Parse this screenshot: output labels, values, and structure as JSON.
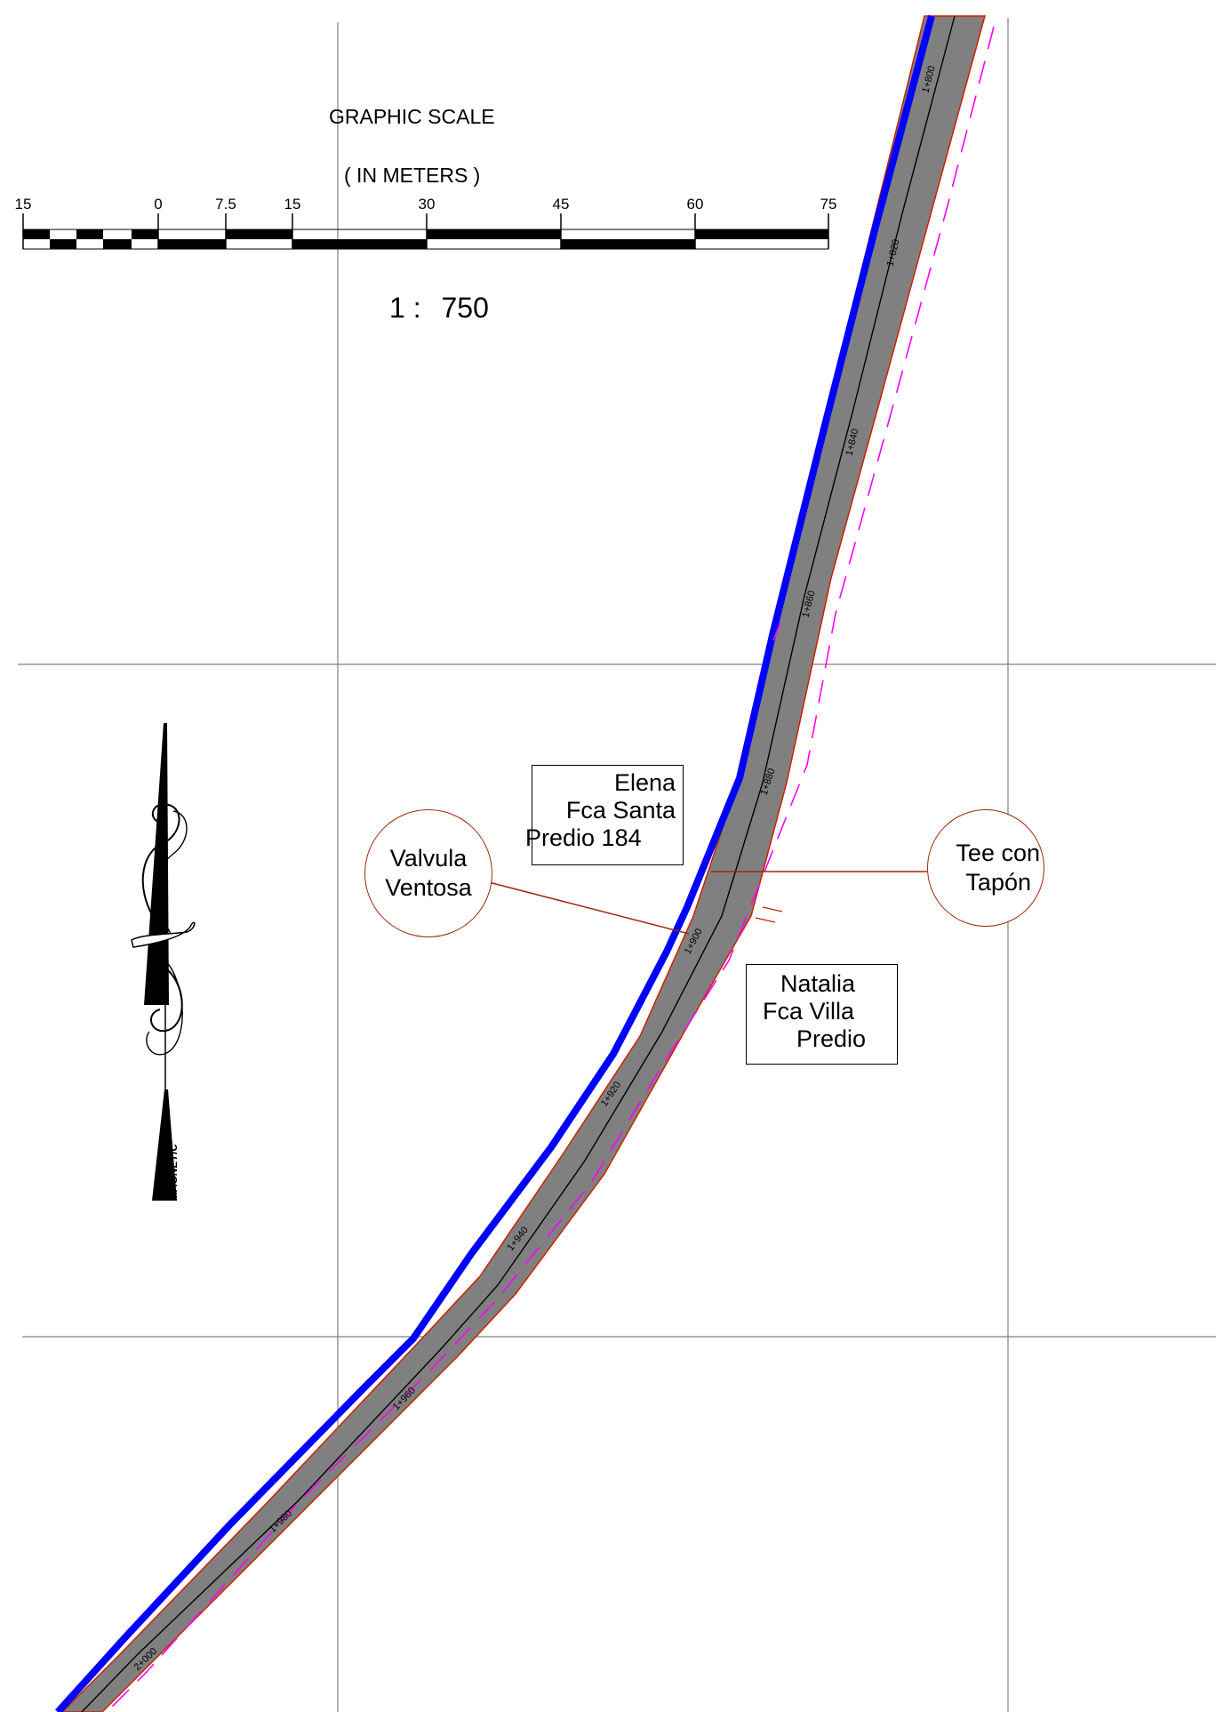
{
  "graphic_scale": {
    "title": "GRAPHIC SCALE",
    "units": "( IN METERS )",
    "ticks": [
      "15",
      "0",
      "7.5",
      "15",
      "30",
      "45",
      "60",
      "75"
    ],
    "ratio_left": "1 :",
    "ratio_right": "750"
  },
  "north_arrow": {
    "label": "MAGNETIC",
    "icon": "magnetic-north-arrow-icon"
  },
  "stations": [
    "1+800",
    "1+820",
    "1+840",
    "1+860",
    "1+880",
    "1+900",
    "1+920",
    "1+940",
    "1+960",
    "1+980",
    "2+000"
  ],
  "parcels": {
    "elena": {
      "lines": [
        "Elena",
        "Fca Santa",
        "Predio 184"
      ]
    },
    "natalia": {
      "lines": [
        "Natalia",
        "Fca Villa",
        "Predio"
      ]
    }
  },
  "callouts": {
    "valvula": {
      "lines": [
        "Valvula",
        "Ventosa"
      ]
    },
    "tee": {
      "lines": [
        "Tee con",
        "Tapón"
      ]
    }
  },
  "colors": {
    "road_fill": "#808080",
    "pipeline": "#0000ff",
    "road_edge": "#cc2200",
    "boundary": "#ff00ff",
    "grid": "#808080",
    "callout": "#a0280a"
  }
}
